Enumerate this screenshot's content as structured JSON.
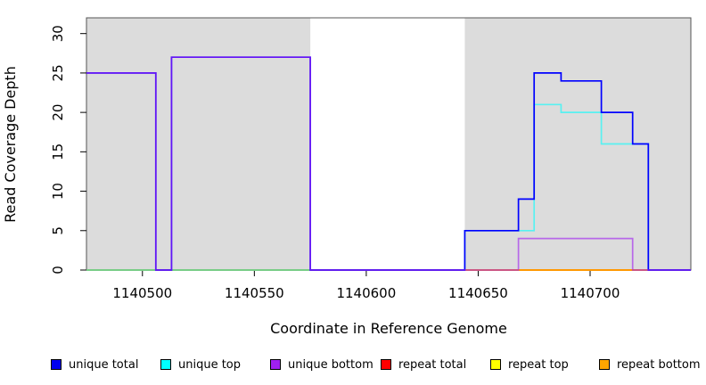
{
  "chart_data": {
    "type": "line",
    "subtype": "step-coverage",
    "title": "",
    "xlabel": "Coordinate in Reference Genome",
    "ylabel": "Read Coverage Depth",
    "xlim": [
      1140475,
      1140745
    ],
    "ylim": [
      0,
      32
    ],
    "x_tick_values": [
      1140500,
      1140550,
      1140600,
      1140650,
      1140700
    ],
    "x_tick_labels": [
      "1140500",
      "1140550",
      "1140600",
      "1140650",
      "1140700"
    ],
    "y_tick_values": [
      0,
      5,
      10,
      15,
      20,
      25,
      30
    ],
    "y_tick_labels": [
      "0",
      "5",
      "10",
      "15",
      "20",
      "25",
      "30"
    ],
    "grid": false,
    "legend_position": "bottom",
    "plot_background": "#ffffff",
    "shaded_region_color": "#dcdcdc",
    "shaded_regions": [
      {
        "from": 1140475,
        "to": 1140575
      },
      {
        "from": 1140644,
        "to": 1140745
      }
    ],
    "series": [
      {
        "name": "repeat top",
        "color": "#FFFF00",
        "opacity": 1,
        "points": [
          [
            1140475,
            0
          ],
          [
            1140745,
            0
          ]
        ]
      },
      {
        "name": "repeat total",
        "color": "#FF0000",
        "opacity": 1,
        "points": [
          [
            1140475,
            0
          ],
          [
            1140745,
            0
          ]
        ]
      },
      {
        "name": "repeat bottom",
        "color": "#FFA500",
        "opacity": 1,
        "points": [
          [
            1140475,
            0
          ],
          [
            1140745,
            0
          ]
        ]
      },
      {
        "name": "unique top",
        "color": "#00FFFF",
        "opacity": 0.6,
        "points": [
          [
            1140475,
            0
          ],
          [
            1140644,
            0
          ],
          [
            1140644,
            5
          ],
          [
            1140675,
            5
          ],
          [
            1140675,
            21
          ],
          [
            1140687,
            21
          ],
          [
            1140687,
            20
          ],
          [
            1140705,
            20
          ],
          [
            1140705,
            16
          ],
          [
            1140726,
            16
          ],
          [
            1140726,
            0
          ],
          [
            1140745,
            0
          ]
        ]
      },
      {
        "name": "unique total",
        "color": "#0000FF",
        "opacity": 1,
        "points": [
          [
            1140475,
            25
          ],
          [
            1140506,
            25
          ],
          [
            1140506,
            0
          ],
          [
            1140513,
            0
          ],
          [
            1140513,
            27
          ],
          [
            1140575,
            27
          ],
          [
            1140575,
            0
          ],
          [
            1140644,
            0
          ],
          [
            1140644,
            5
          ],
          [
            1140668,
            5
          ],
          [
            1140668,
            9
          ],
          [
            1140675,
            9
          ],
          [
            1140675,
            25
          ],
          [
            1140687,
            25
          ],
          [
            1140687,
            24
          ],
          [
            1140705,
            24
          ],
          [
            1140705,
            20
          ],
          [
            1140719,
            20
          ],
          [
            1140719,
            16
          ],
          [
            1140726,
            16
          ],
          [
            1140726,
            0
          ],
          [
            1140745,
            0
          ]
        ]
      },
      {
        "name": "unique bottom",
        "color": "#A020F0",
        "opacity": 0.62,
        "points": [
          [
            1140475,
            25
          ],
          [
            1140506,
            25
          ],
          [
            1140506,
            0
          ],
          [
            1140513,
            0
          ],
          [
            1140513,
            27
          ],
          [
            1140575,
            27
          ],
          [
            1140575,
            0
          ],
          [
            1140668,
            0
          ],
          [
            1140668,
            4
          ],
          [
            1140719,
            4
          ],
          [
            1140719,
            0
          ],
          [
            1140745,
            0
          ]
        ]
      }
    ],
    "legend": [
      {
        "label": "unique total",
        "color": "#0000EE"
      },
      {
        "label": "unique top",
        "color": "#00FFFF"
      },
      {
        "label": "unique bottom",
        "color": "#A020F0"
      },
      {
        "label": "repeat total",
        "color": "#FF0000"
      },
      {
        "label": "repeat top",
        "color": "#FFFF00"
      },
      {
        "label": "repeat bottom",
        "color": "#FFA500"
      }
    ]
  }
}
